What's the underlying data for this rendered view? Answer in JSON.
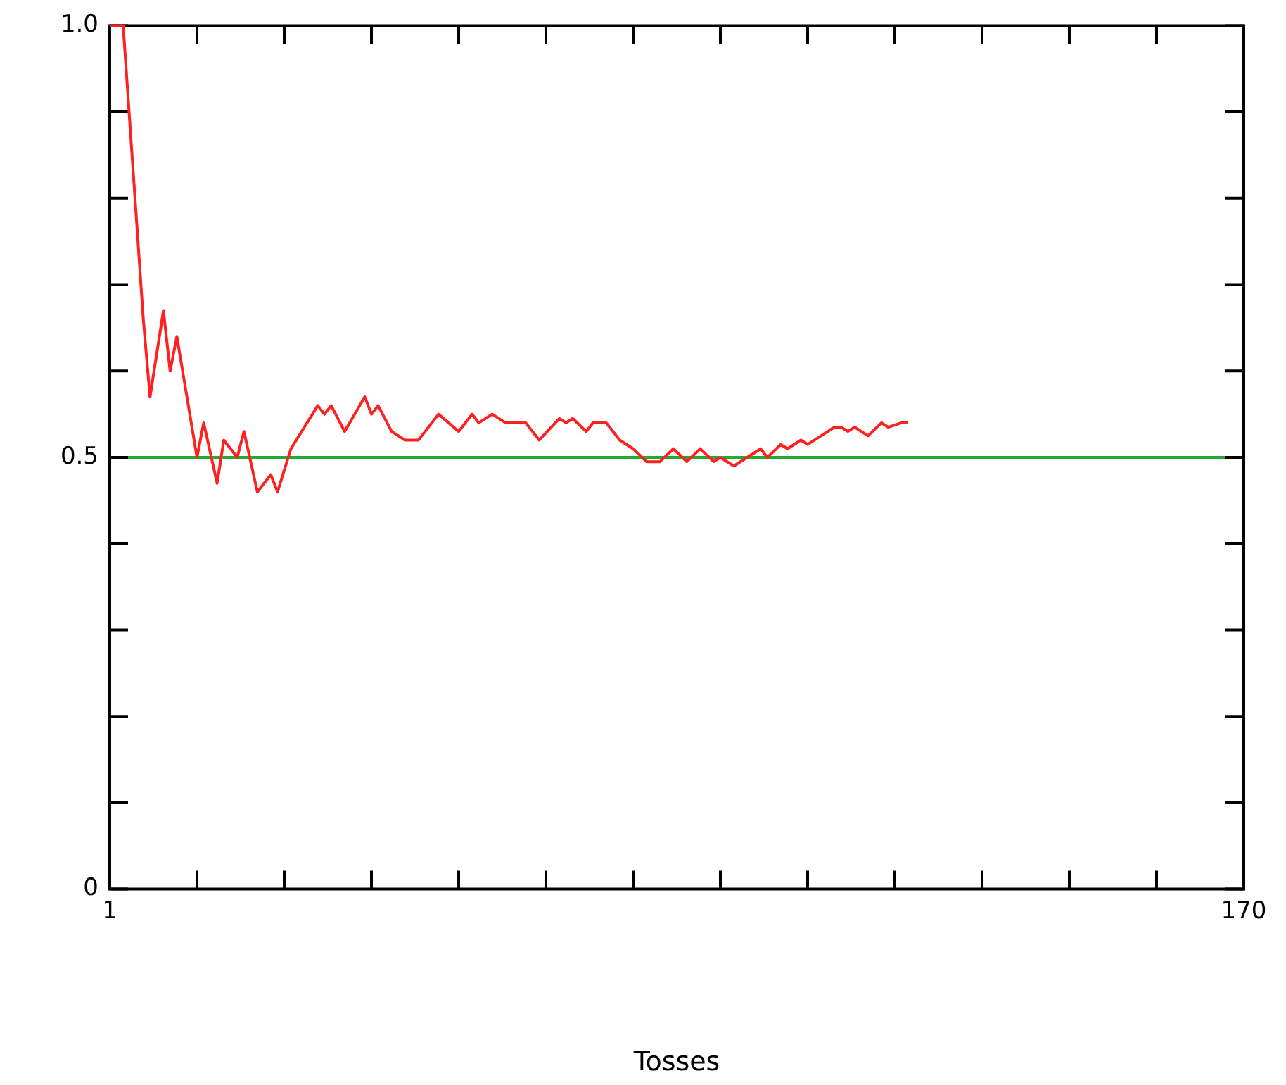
{
  "chart_data": {
    "type": "line",
    "xlabel": "Tosses",
    "xlim": [
      1,
      170
    ],
    "ylim": [
      0,
      1
    ],
    "xticks": [
      1,
      {
        "value": 14,
        "label": null
      },
      {
        "value": 27,
        "label": null
      },
      {
        "value": 40,
        "label": null
      },
      {
        "value": 53,
        "label": null
      },
      {
        "value": 66,
        "label": null
      },
      {
        "value": 79,
        "label": null
      },
      {
        "value": 92,
        "label": null
      },
      {
        "value": 105,
        "label": null
      },
      {
        "value": 118,
        "label": null
      },
      {
        "value": 131,
        "label": null
      },
      {
        "value": 144,
        "label": null
      },
      {
        "value": 157,
        "label": null
      },
      170
    ],
    "yticks": [
      0,
      {
        "value": 0.1,
        "label": null
      },
      {
        "value": 0.2,
        "label": null
      },
      {
        "value": 0.3,
        "label": null
      },
      {
        "value": 0.4,
        "label": null
      },
      0.5,
      {
        "value": 0.6,
        "label": null
      },
      {
        "value": 0.7,
        "label": null
      },
      {
        "value": 0.8,
        "label": null
      },
      {
        "value": 0.9,
        "label": null
      },
      {
        "value": 1,
        "label": "1.0"
      }
    ],
    "marker": "none",
    "line_style": "solid",
    "legend": false,
    "ref_lines": [
      {
        "axis": "y",
        "value": 0.5,
        "label": null,
        "color": "#22aa33"
      }
    ],
    "series": [
      {
        "color": "#ff2020",
        "x": [
          1,
          3,
          6,
          7,
          9,
          10,
          11,
          14,
          15,
          17,
          18,
          20,
          21,
          23,
          25,
          26,
          28,
          32,
          33,
          34,
          36,
          39,
          40,
          41,
          43,
          45,
          47,
          50,
          53,
          55,
          56,
          58,
          60,
          63,
          65,
          68,
          69,
          70,
          72,
          73,
          75,
          77,
          79,
          81,
          83,
          85,
          87,
          89,
          91,
          92,
          94,
          98,
          99,
          101,
          102,
          104,
          105,
          107,
          109,
          110,
          111,
          112,
          114,
          116,
          117,
          119,
          120
        ],
        "values": [
          1.0,
          1.0,
          0.66,
          0.57,
          0.67,
          0.6,
          0.64,
          0.5,
          0.54,
          0.47,
          0.52,
          0.5,
          0.53,
          0.46,
          0.48,
          0.46,
          0.51,
          0.56,
          0.55,
          0.56,
          0.53,
          0.57,
          0.55,
          0.56,
          0.53,
          0.52,
          0.52,
          0.55,
          0.53,
          0.55,
          0.54,
          0.55,
          0.54,
          0.54,
          0.52,
          0.545,
          0.54,
          0.545,
          0.53,
          0.54,
          0.54,
          0.52,
          0.51,
          0.495,
          0.495,
          0.51,
          0.495,
          0.51,
          0.495,
          0.5,
          0.49,
          0.51,
          0.5,
          0.515,
          0.51,
          0.52,
          0.515,
          0.525,
          0.535,
          0.535,
          0.53,
          0.535,
          0.525,
          0.54,
          0.535,
          0.54,
          0.54
        ]
      }
    ]
  }
}
